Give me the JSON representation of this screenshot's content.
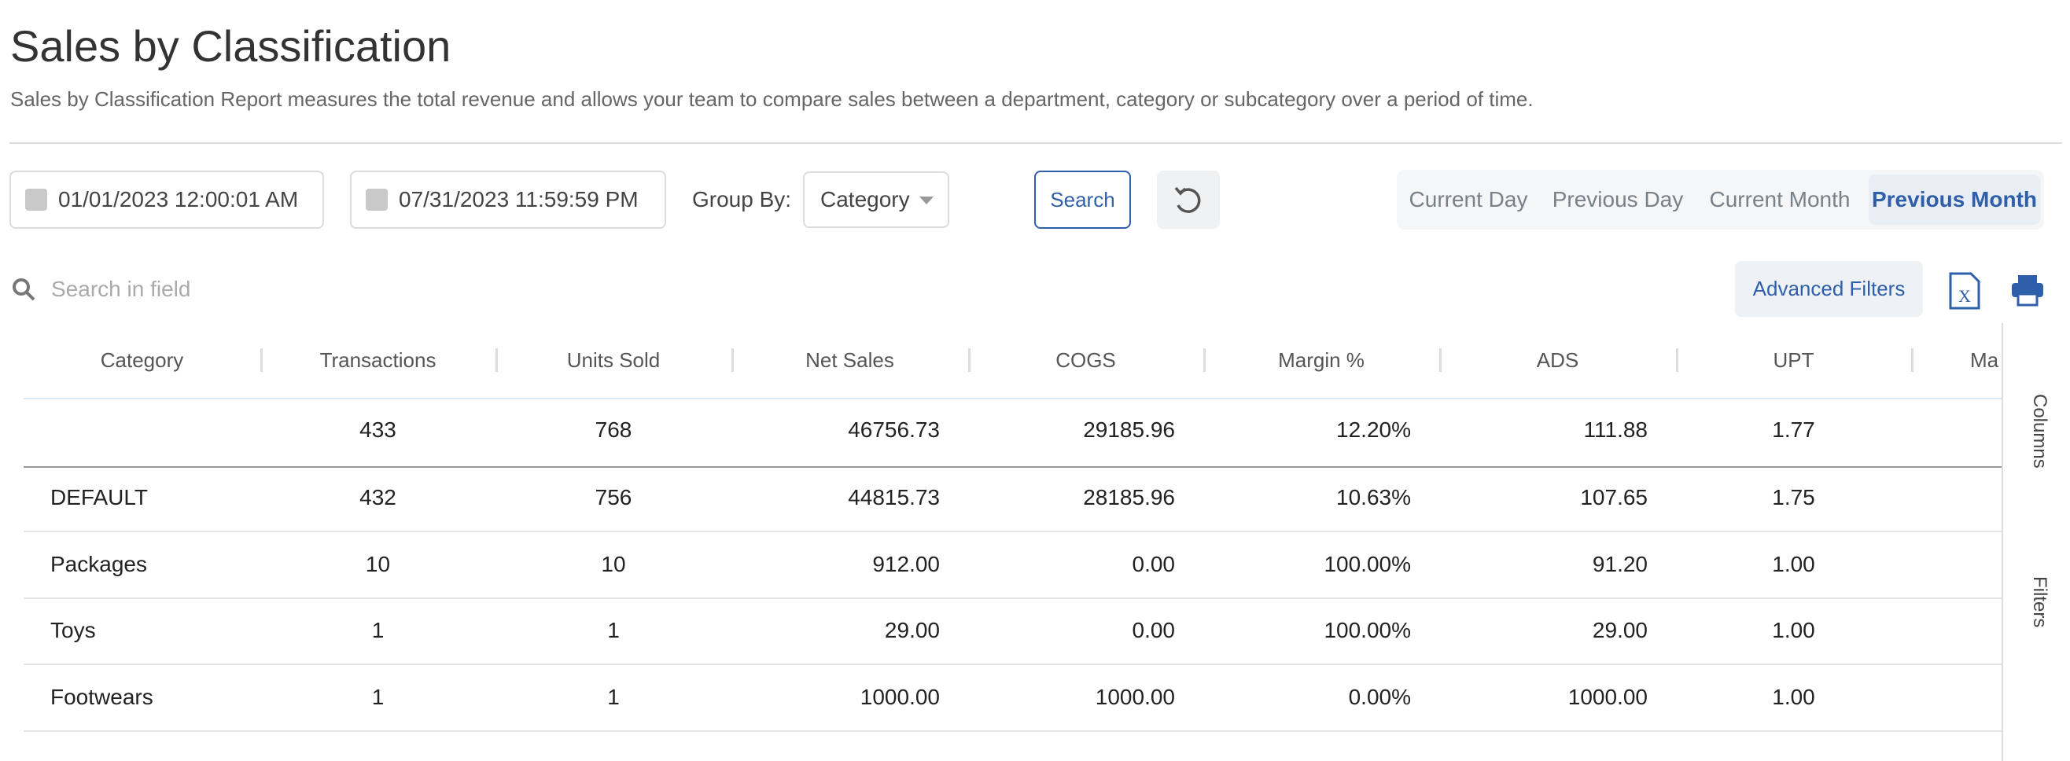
{
  "header": {
    "title": "Sales by Classification",
    "description": "Sales by Classification Report measures the total revenue and allows your team to compare sales between a department, category or subcategory over a period of time."
  },
  "controls": {
    "start_date": "01/01/2023 12:00:01 AM",
    "end_date": "07/31/2023 11:59:59 PM",
    "group_by_label": "Group By:",
    "group_by_value": "Category",
    "search_button": "Search",
    "quick_ranges": [
      "Current Day",
      "Previous Day",
      "Current Month",
      "Previous Month"
    ],
    "search_placeholder": "Search in field",
    "advanced_filters": "Advanced Filters"
  },
  "table": {
    "columns": [
      "Category",
      "Transactions",
      "Units Sold",
      "Net Sales",
      "COGS",
      "Margin %",
      "ADS",
      "UPT",
      "Ma"
    ],
    "totals": [
      "",
      "433",
      "768",
      "46756.73",
      "29185.96",
      "12.20%",
      "111.88",
      "1.77"
    ],
    "rows": [
      [
        "DEFAULT",
        "432",
        "756",
        "44815.73",
        "28185.96",
        "10.63%",
        "107.65",
        "1.75"
      ],
      [
        "Packages",
        "10",
        "10",
        "912.00",
        "0.00",
        "100.00%",
        "91.20",
        "1.00"
      ],
      [
        "Toys",
        "1",
        "1",
        "29.00",
        "0.00",
        "100.00%",
        "29.00",
        "1.00"
      ],
      [
        "Footwears",
        "1",
        "1",
        "1000.00",
        "1000.00",
        "0.00%",
        "1000.00",
        "1.00"
      ]
    ]
  },
  "side_panel": {
    "tabs": [
      "Columns",
      "Filters"
    ]
  }
}
